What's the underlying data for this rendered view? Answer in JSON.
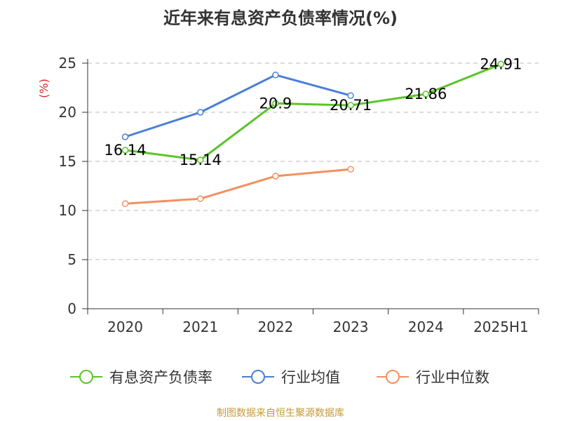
{
  "header": {
    "title": "近年来有息资产负债率情况(%)"
  },
  "footer": {
    "source": "制图数据来自恒生聚源数据库"
  },
  "chart_data": {
    "type": "line",
    "title": "近年来有息资产负债率情况(%)",
    "ylabel": "(%)",
    "xlabel": "",
    "categories": [
      "2020",
      "2021",
      "2022",
      "2023",
      "2024",
      "2025H1"
    ],
    "ylim": [
      0,
      25
    ],
    "yticks": [
      "0",
      "5",
      "10",
      "15",
      "20",
      "25"
    ],
    "grid": "horizontal-dashed",
    "legend_position": "bottom",
    "series": [
      {
        "name": "有息资产负债率",
        "color": "#5bc42a",
        "values": [
          16.14,
          15.14,
          20.9,
          20.71,
          21.86,
          24.91
        ],
        "data_labels": [
          "16.14",
          "15.14",
          "20.9",
          "20.71",
          "21.86",
          "24.91"
        ]
      },
      {
        "name": "行业均值",
        "color": "#4a7fd6",
        "values": [
          17.5,
          20.0,
          23.8,
          21.7,
          null,
          null
        ]
      },
      {
        "name": "行业中位数",
        "color": "#f39060",
        "values": [
          10.7,
          11.2,
          13.5,
          14.2,
          null,
          null
        ]
      }
    ]
  }
}
